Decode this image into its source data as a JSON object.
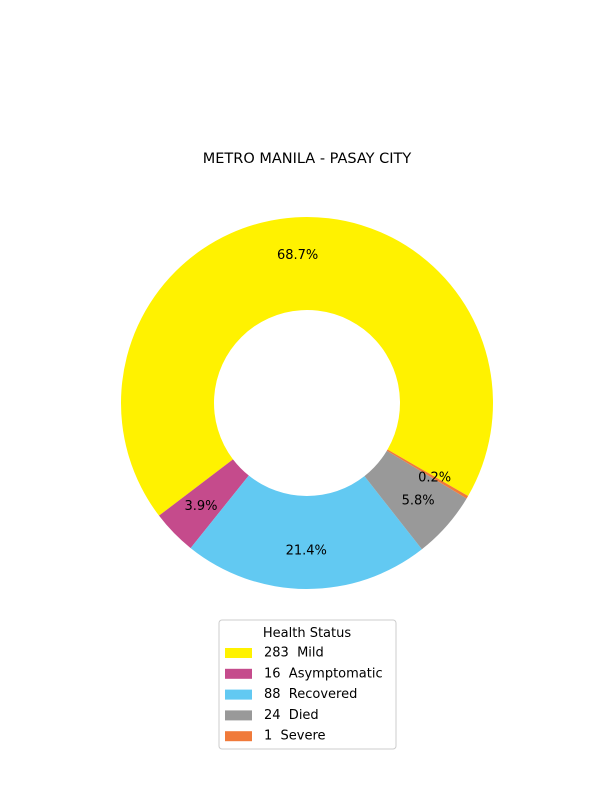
{
  "chart_data": {
    "type": "pie",
    "donut": true,
    "title": "METRO MANILA - PASAY CITY",
    "legend": {
      "title": "Health Status",
      "placement": "bottom-center"
    },
    "slices": [
      {
        "name": "Mild",
        "value": 283,
        "percent_label": "68.7%",
        "legend_label": "283  Mild",
        "color": "#fff200"
      },
      {
        "name": "Asymptomatic",
        "value": 16,
        "percent_label": "3.9%",
        "legend_label": "16  Asymptomatic",
        "color": "#c54b8c"
      },
      {
        "name": "Recovered",
        "value": 88,
        "percent_label": "21.4%",
        "legend_label": "88  Recovered",
        "color": "#62c9f2"
      },
      {
        "name": "Died",
        "value": 24,
        "percent_label": "5.8%",
        "legend_label": "24  Died",
        "color": "#999999"
      },
      {
        "name": "Severe",
        "value": 1,
        "percent_label": "0.2%",
        "legend_label": "1  Severe",
        "color": "#f07a3a"
      }
    ]
  }
}
